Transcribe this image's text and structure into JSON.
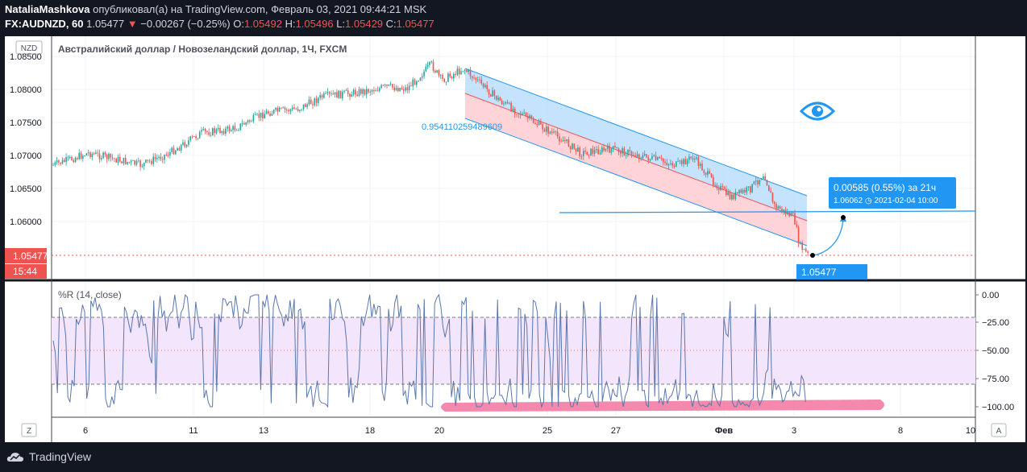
{
  "header": {
    "author": "NataliaMashkova",
    "published_text": "опубликовал(а) на TradingView.com, Февраль 03, 2021 09:44:21 MSK",
    "symbol": "FX:AUDNZD, 60",
    "last": "1.05477",
    "change": "−0.00267 (−0.25%)",
    "o_label": "O:",
    "o": "1.05492",
    "h_label": "H:",
    "h": "1.05496",
    "l_label": "L:",
    "l": "1.05429",
    "c_label": "C:",
    "c": "1.05477"
  },
  "main_pane": {
    "title": "Австралийский доллар / Новозеландский доллар, 1Ч, FXCM",
    "currency_badge": "NZD",
    "price_ticks": [
      "1.08500",
      "1.08000",
      "1.07500",
      "1.07000",
      "1.06500",
      "1.06000"
    ],
    "current_price_label": "1.05477",
    "countdown_label": "15:44",
    "fib_label": "0.954110259489609",
    "measure_box_line1": "0.00585 (0.55%) за 21ч",
    "measure_box_line2": "1.06062 ◷ 2021-02-04  10:00",
    "price_tag": "1.05477"
  },
  "indicator_pane": {
    "title": "%R (14, close)",
    "ticks": [
      "0.00",
      "−25.00",
      "−50.00",
      "−75.00",
      "−100.00"
    ]
  },
  "time_axis": {
    "labels": [
      "6",
      "11",
      "13",
      "18",
      "20",
      "25",
      "27",
      "Фев",
      "3",
      "8",
      "10"
    ],
    "z_button": "Z",
    "a_button": "A"
  },
  "footer": {
    "brand": "TradingView"
  },
  "colors": {
    "background": "#131722",
    "up": "#26a69a",
    "down": "#ef5350",
    "channel_blue": "#bbdefb",
    "channel_red": "#ffcdd2",
    "wr_line": "#5b77ad",
    "wr_band": "#f3e5fb",
    "highlight": "#f06292"
  }
}
